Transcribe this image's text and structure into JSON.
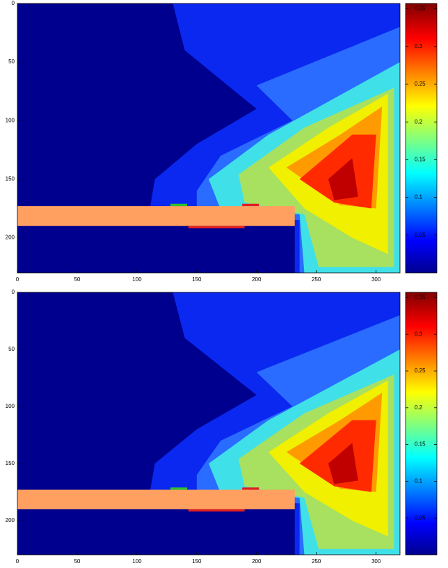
{
  "chart_data": [
    {
      "type": "heatmap",
      "xlim": [
        0,
        320
      ],
      "ylim": [
        230,
        0
      ],
      "xticks": [
        0,
        50,
        100,
        150,
        200,
        250,
        300
      ],
      "yticks": [
        0,
        50,
        100,
        150,
        200
      ],
      "colorbar": {
        "lim": [
          0,
          0.357
        ],
        "ticks": [
          0.05,
          0.1,
          0.15,
          0.2,
          0.25,
          0.3,
          0.35
        ]
      }
    },
    {
      "type": "heatmap",
      "xlim": [
        0,
        320
      ],
      "ylim": [
        230,
        0
      ],
      "xticks": [
        0,
        50,
        100,
        150,
        200,
        250,
        300
      ],
      "yticks": [
        0,
        50,
        100,
        150,
        200
      ],
      "colorbar": {
        "lim": [
          0,
          0.357
        ],
        "ticks": [
          0.05,
          0.1,
          0.15,
          0.2,
          0.25,
          0.3,
          0.35
        ]
      }
    }
  ]
}
